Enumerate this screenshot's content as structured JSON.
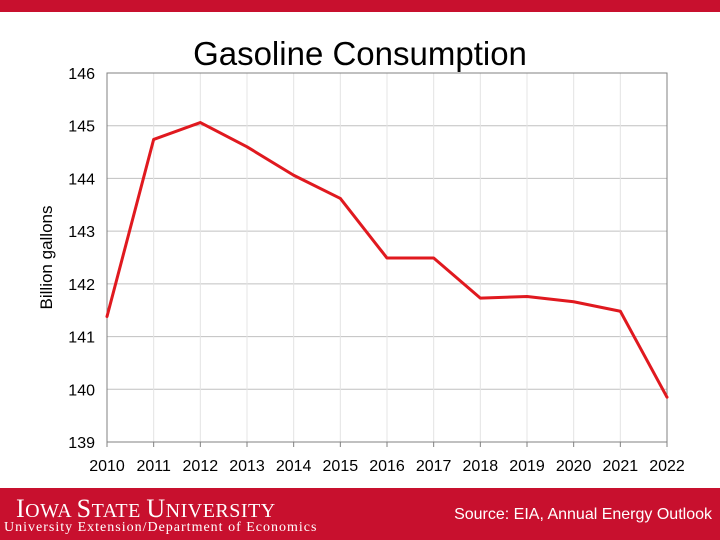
{
  "colors": {
    "brand": "#c8102e",
    "line": "#e0191f",
    "grid": "#c0c0c0",
    "plot_border": "#808080"
  },
  "chart_data": {
    "type": "line",
    "title": "Gasoline Consumption",
    "xlabel": "",
    "ylabel": "Billion gallons",
    "categories": [
      "2010",
      "2011",
      "2012",
      "2013",
      "2014",
      "2015",
      "2016",
      "2017",
      "2018",
      "2019",
      "2020",
      "2021",
      "2022"
    ],
    "series": [
      {
        "values": [
          141.38,
          144.74,
          145.06,
          144.6,
          144.06,
          143.62,
          142.49,
          142.49,
          141.73,
          141.76,
          141.66,
          141.48,
          139.85
        ]
      }
    ],
    "ylim": [
      139,
      146
    ],
    "yticks": [
      "139",
      "140",
      "141",
      "142",
      "143",
      "144",
      "145",
      "146"
    ],
    "grid": true,
    "legend": "none"
  },
  "footer": {
    "logo_text": "Iowa State University",
    "logo_parts": [
      "I",
      "OWA ",
      "S",
      "TATE ",
      "U",
      "NIVERSITY"
    ],
    "subtitle": "University Extension/Department of Economics",
    "source": "Source: EIA, Annual Energy Outlook"
  }
}
